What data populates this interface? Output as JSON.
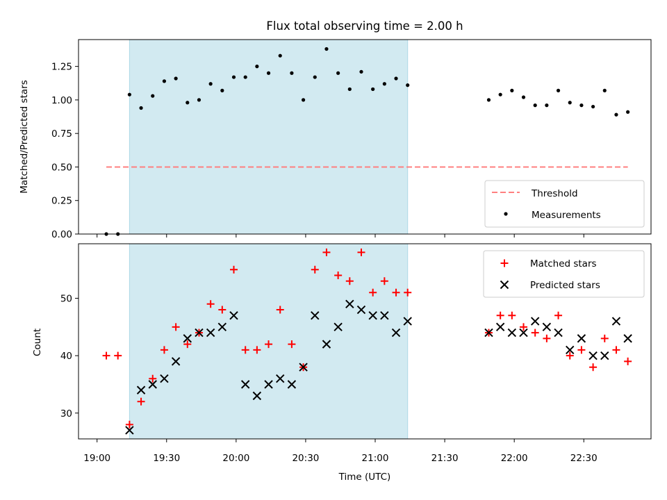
{
  "figure": {
    "title": "Flux total observing time = 2.00 h",
    "xlabel": "Time (UTC)",
    "x_ticks": [
      "19:00",
      "19:30",
      "20:00",
      "20:30",
      "21:00",
      "21:30",
      "22:00",
      "22:30"
    ],
    "colors": {
      "highlight": "#add8e6",
      "threshold": "#ff7f7f",
      "matched": "#ff0000",
      "predicted": "#000000",
      "measurement": "#000000"
    }
  },
  "chart_data": [
    {
      "type": "scatter",
      "ylabel": "Matched/Predicted stars",
      "xlim": [
        "18:52",
        "22:59"
      ],
      "ylim": [
        0,
        1.45
      ],
      "y_ticks": [
        "0.00",
        "0.25",
        "0.50",
        "0.75",
        "1.00",
        "1.25"
      ],
      "highlight_span": [
        "19:14",
        "21:14"
      ],
      "threshold": {
        "value": 0.5,
        "x_range": [
          "19:04",
          "22:49"
        ]
      },
      "legend": {
        "placement": "lower right",
        "entries": [
          "Threshold",
          "Measurements"
        ]
      },
      "series": [
        {
          "name": "Measurements",
          "points": [
            [
              "19:04",
              0.0
            ],
            [
              "19:09",
              0.0
            ],
            [
              "19:14",
              1.04
            ],
            [
              "19:19",
              0.94
            ],
            [
              "19:24",
              1.03
            ],
            [
              "19:29",
              1.14
            ],
            [
              "19:34",
              1.16
            ],
            [
              "19:39",
              0.98
            ],
            [
              "19:44",
              1.0
            ],
            [
              "19:49",
              1.12
            ],
            [
              "19:54",
              1.07
            ],
            [
              "19:59",
              1.17
            ],
            [
              "20:04",
              1.17
            ],
            [
              "20:09",
              1.25
            ],
            [
              "20:14",
              1.2
            ],
            [
              "20:19",
              1.33
            ],
            [
              "20:24",
              1.2
            ],
            [
              "20:29",
              1.0
            ],
            [
              "20:34",
              1.17
            ],
            [
              "20:39",
              1.38
            ],
            [
              "20:44",
              1.2
            ],
            [
              "20:49",
              1.08
            ],
            [
              "20:54",
              1.21
            ],
            [
              "20:59",
              1.08
            ],
            [
              "21:04",
              1.12
            ],
            [
              "21:09",
              1.16
            ],
            [
              "21:14",
              1.11
            ],
            [
              "21:49",
              1.0
            ],
            [
              "21:54",
              1.04
            ],
            [
              "21:59",
              1.07
            ],
            [
              "22:04",
              1.02
            ],
            [
              "22:09",
              0.96
            ],
            [
              "22:14",
              0.96
            ],
            [
              "22:19",
              1.07
            ],
            [
              "22:24",
              0.98
            ],
            [
              "22:29",
              0.96
            ],
            [
              "22:34",
              0.95
            ],
            [
              "22:39",
              1.07
            ],
            [
              "22:44",
              0.89
            ],
            [
              "22:49",
              0.91
            ]
          ]
        }
      ]
    },
    {
      "type": "scatter",
      "ylabel": "Count",
      "xlim": [
        "18:52",
        "22:59"
      ],
      "ylim": [
        25.5,
        59.5
      ],
      "y_ticks": [
        "30",
        "40",
        "50"
      ],
      "highlight_span": [
        "19:14",
        "21:14"
      ],
      "legend": {
        "placement": "upper right",
        "entries": [
          "Matched stars",
          "Predicted stars"
        ]
      },
      "series": [
        {
          "name": "Matched stars",
          "points": [
            [
              "19:04",
              40
            ],
            [
              "19:09",
              40
            ],
            [
              "19:14",
              28
            ],
            [
              "19:19",
              32
            ],
            [
              "19:24",
              36
            ],
            [
              "19:29",
              41
            ],
            [
              "19:34",
              45
            ],
            [
              "19:39",
              42
            ],
            [
              "19:44",
              44
            ],
            [
              "19:49",
              49
            ],
            [
              "19:54",
              48
            ],
            [
              "19:59",
              55
            ],
            [
              "20:04",
              41
            ],
            [
              "20:09",
              41
            ],
            [
              "20:14",
              42
            ],
            [
              "20:19",
              48
            ],
            [
              "20:24",
              42
            ],
            [
              "20:29",
              38
            ],
            [
              "20:34",
              55
            ],
            [
              "20:39",
              58
            ],
            [
              "20:44",
              54
            ],
            [
              "20:49",
              53
            ],
            [
              "20:54",
              58
            ],
            [
              "20:59",
              51
            ],
            [
              "21:04",
              53
            ],
            [
              "21:09",
              51
            ],
            [
              "21:14",
              51
            ],
            [
              "21:49",
              44
            ],
            [
              "21:54",
              47
            ],
            [
              "21:59",
              47
            ],
            [
              "22:04",
              45
            ],
            [
              "22:09",
              44
            ],
            [
              "22:14",
              43
            ],
            [
              "22:19",
              47
            ],
            [
              "22:24",
              40
            ],
            [
              "22:29",
              41
            ],
            [
              "22:34",
              38
            ],
            [
              "22:39",
              43
            ],
            [
              "22:44",
              41
            ],
            [
              "22:49",
              39
            ]
          ]
        },
        {
          "name": "Predicted stars",
          "points": [
            [
              "19:14",
              27
            ],
            [
              "19:19",
              34
            ],
            [
              "19:24",
              35
            ],
            [
              "19:29",
              36
            ],
            [
              "19:34",
              39
            ],
            [
              "19:39",
              43
            ],
            [
              "19:44",
              44
            ],
            [
              "19:49",
              44
            ],
            [
              "19:54",
              45
            ],
            [
              "19:59",
              47
            ],
            [
              "20:04",
              35
            ],
            [
              "20:09",
              33
            ],
            [
              "20:14",
              35
            ],
            [
              "20:19",
              36
            ],
            [
              "20:24",
              35
            ],
            [
              "20:29",
              38
            ],
            [
              "20:34",
              47
            ],
            [
              "20:39",
              42
            ],
            [
              "20:44",
              45
            ],
            [
              "20:49",
              49
            ],
            [
              "20:54",
              48
            ],
            [
              "20:59",
              47
            ],
            [
              "21:04",
              47
            ],
            [
              "21:09",
              44
            ],
            [
              "21:14",
              46
            ],
            [
              "21:49",
              44
            ],
            [
              "21:54",
              45
            ],
            [
              "21:59",
              44
            ],
            [
              "22:04",
              44
            ],
            [
              "22:09",
              46
            ],
            [
              "22:14",
              45
            ],
            [
              "22:19",
              44
            ],
            [
              "22:24",
              41
            ],
            [
              "22:29",
              43
            ],
            [
              "22:34",
              40
            ],
            [
              "22:39",
              40
            ],
            [
              "22:44",
              46
            ],
            [
              "22:49",
              43
            ]
          ]
        }
      ]
    }
  ]
}
